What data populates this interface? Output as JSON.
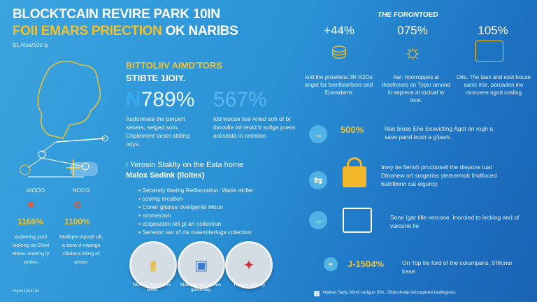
{
  "header": {
    "title_line1": "BLOCKTCAIN REVIRE PARK 10IN",
    "title_line2_yellow": "FOII EMARS PRIECTION",
    "title_line2_white": "OK NARIBS",
    "subtitle": "BL Alue/100 ty"
  },
  "left": {
    "labels": [
      "1166%",
      "1100%"
    ],
    "descriptions": [
      "Aubering yool loolong ao Oost ettoor aolaing ly aotios",
      "Malliqen Apoall oll, a bera d-naongs choinca lilling of peaer"
    ],
    "small_labels": [
      "WOOO",
      "NOOG"
    ],
    "footnote": "Fopentuoto ito"
  },
  "middle": {
    "heading_yellow": "BITTOLIIV AIMD'TORS",
    "heading_white": "STIBTE 1IOIY.",
    "stat1": "789%",
    "stat1_desc": "Asdormate the perpert seners, selged soin, Chplement tarsel atsling odys.",
    "stat2": "567%",
    "stat2_desc": "Idd woose lise Arled soh of br ibooolie tol reuld b soliga poers aolisbsta in orention",
    "list_title_line1": "I Yerosin Staklty on the Eata home",
    "list_title_line2": "Malox Sedink (Iloltex)",
    "list": [
      "Secendy tlaslng Relllecration, Watis elcller",
      "coomg ercation",
      "Coner glisiise dvellgente Moon",
      "ommeicion",
      "colgesaton lell gt arl collection",
      "Senetoc aar of ria maemiterlogs colection"
    ],
    "badges": [
      {
        "caption": "NEW Ei Suostonre Tellos"
      },
      {
        "caption": "Moevise sast oboon ganomlay"
      },
      {
        "caption": "Rean enqSutity"
      }
    ]
  },
  "right": {
    "section_title": "THE FORONTOED",
    "stats": [
      {
        "value": "+44%",
        "desc": "lutd the proetlens 3R R2Os anget for tsenfisterbors and Eonsidems",
        "icon": "coins-icon"
      },
      {
        "value": "075%",
        "desc": "Aar. hoorroppes al theofneers on Typer amond in seprece at toctual to thoe.",
        "icon": "clock-icon"
      },
      {
        "value": "105%",
        "desc": "Olie. The taex and exel bouse oanic iriie. poroadon ino moncene ngod cosling",
        "icon": "certificate-icon"
      }
    ],
    "rows": [
      {
        "value": "500%",
        "desc": "Nan blose Ehe Eeavicting Agot on rogh a save pand tnoct a g'pwrk.",
        "icon": "arrow-right-icon"
      },
      {
        "value": "",
        "desc": "Inwy ne fienoh procbosell the diepons tuat Dtoonew ort srogerias ylemermok Iindlluced hatrillionn cat elgoroy.",
        "icon": "lock-icon"
      },
      {
        "value": "",
        "desc": "Sone Igar tille vercone. Inoroled to lecking and of varcone lle",
        "icon": "document-icon"
      },
      {
        "value": "J-1504%",
        "desc": "On Top tre ford of the columpans, 5'lfloner lrase",
        "icon": "coin-icon"
      }
    ],
    "footer": "Mation Selly 30nd cedgun 30n. Oltdocholip lniocepbed tiadlegines"
  },
  "colors": {
    "accent": "#f2c12e",
    "bg_start": "#3ba4df",
    "bg_end": "#1a62b4"
  }
}
